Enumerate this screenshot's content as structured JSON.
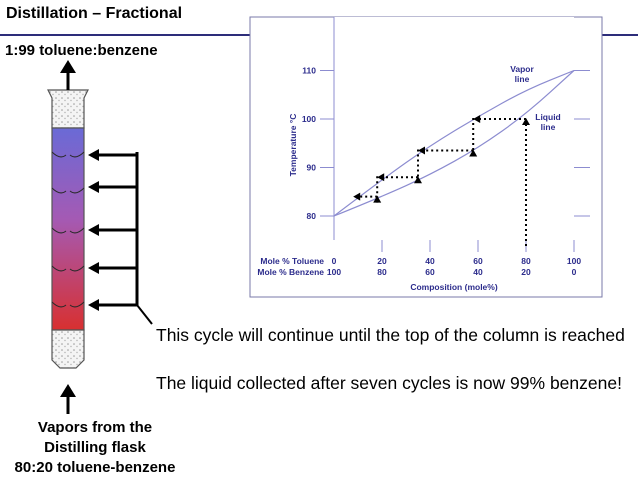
{
  "slide": {
    "title": "Distillation – Fractional",
    "top_label": "1:99 toluene:benzene",
    "bottom_label_lines": [
      "Vapors from the",
      "Distilling flask",
      "80:20 toluene-benzene"
    ],
    "caption_1": "This cycle will continue until the top of the column is reached",
    "caption_2": "The liquid collected after seven cycles is now 99% benzene!"
  },
  "colors": {
    "accent_rule": "#2d2d7a",
    "chart_text": "#2c2c8c",
    "curve": "#8c8cd0",
    "column_top": "#6a6ad6",
    "column_bottom": "#d83030"
  },
  "chart_data": {
    "type": "line",
    "ylabel": "Temperature °C",
    "xlabel": "Composition (mole%)",
    "x_row_labels": [
      "Mole % Toluene",
      "Mole % Benzene"
    ],
    "x_ticks_toluene": [
      0,
      20,
      40,
      60,
      80,
      100
    ],
    "x_ticks_benzene": [
      100,
      80,
      60,
      40,
      20,
      0
    ],
    "y_ticks": [
      80,
      90,
      100,
      110
    ],
    "xlim": [
      0,
      100
    ],
    "ylim": [
      75,
      113
    ],
    "series": [
      {
        "name": "Vapor line",
        "label_lines": [
          "Vapor",
          "line"
        ],
        "x": [
          0,
          20,
          40,
          60,
          80,
          100
        ],
        "y": [
          80,
          87.5,
          94.5,
          100.5,
          106,
          110
        ]
      },
      {
        "name": "Liquid line",
        "label_lines": [
          "Liquid",
          "line"
        ],
        "x": [
          0,
          20,
          40,
          60,
          80,
          100
        ],
        "y": [
          80,
          84,
          88.5,
          94,
          101,
          110
        ]
      }
    ],
    "steps": [
      {
        "x_from": 80,
        "x_to": 58,
        "y": 100
      },
      {
        "x_from": 58,
        "x_to": 35,
        "y": 93.5
      },
      {
        "x_from": 35,
        "x_to": 18,
        "y": 88
      },
      {
        "x_from": 18,
        "x_to": 8,
        "y": 84
      }
    ]
  }
}
